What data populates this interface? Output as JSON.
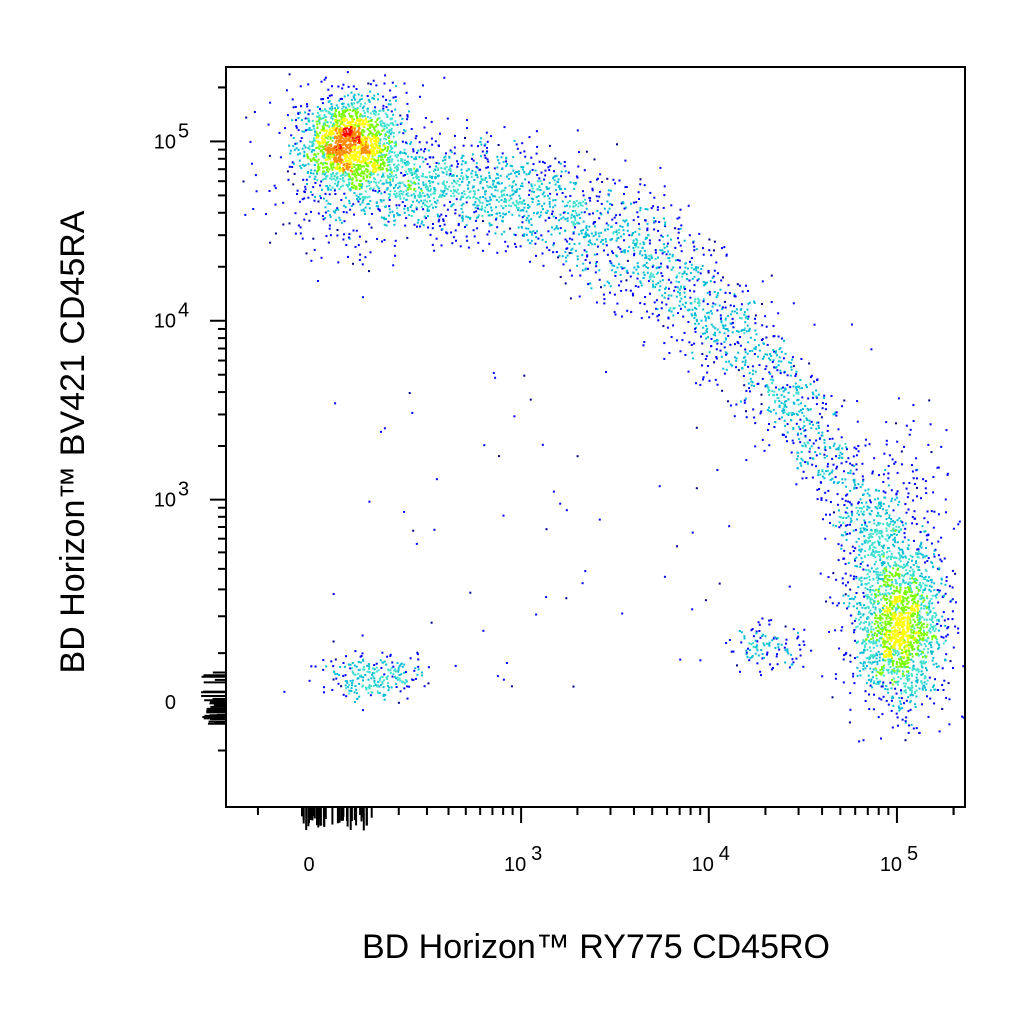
{
  "chart_data": {
    "type": "scatter",
    "subtype": "flow cytometry density dot plot",
    "title": "",
    "xlabel": "BD Horizon™ RY775 CD45RO",
    "ylabel": "BD Horizon™ BV421 CD45RA",
    "x_scale": "biexponential",
    "y_scale": "biexponential",
    "x_ticks": [
      {
        "value": 0,
        "base": "0",
        "exp": ""
      },
      {
        "value": 1000,
        "base": "10",
        "exp": "3"
      },
      {
        "value": 10000,
        "base": "10",
        "exp": "4"
      },
      {
        "value": 100000,
        "base": "10",
        "exp": "5"
      }
    ],
    "y_ticks": [
      {
        "value": 0,
        "base": "0",
        "exp": ""
      },
      {
        "value": 1000,
        "base": "10",
        "exp": "3"
      },
      {
        "value": 10000,
        "base": "10",
        "exp": "4"
      },
      {
        "value": 100000,
        "base": "10",
        "exp": "5"
      }
    ],
    "xlim": [
      -180,
      230000
    ],
    "ylim": [
      -270,
      260000
    ],
    "grid": false,
    "density_colors": [
      "#00008b",
      "#0000ff",
      "#00bcd4",
      "#40e0d0",
      "#7cfc00",
      "#ffff00",
      "#ff8c00",
      "#ff0000"
    ],
    "populations": [
      {
        "x": 0,
        "y": 88000,
        "density": "high"
      },
      {
        "x": 110000,
        "y": 100,
        "density": "high"
      },
      {
        "x": 20,
        "y": 30,
        "density": "low"
      },
      {
        "x": 18000,
        "y": 130,
        "density": "low"
      }
    ]
  }
}
